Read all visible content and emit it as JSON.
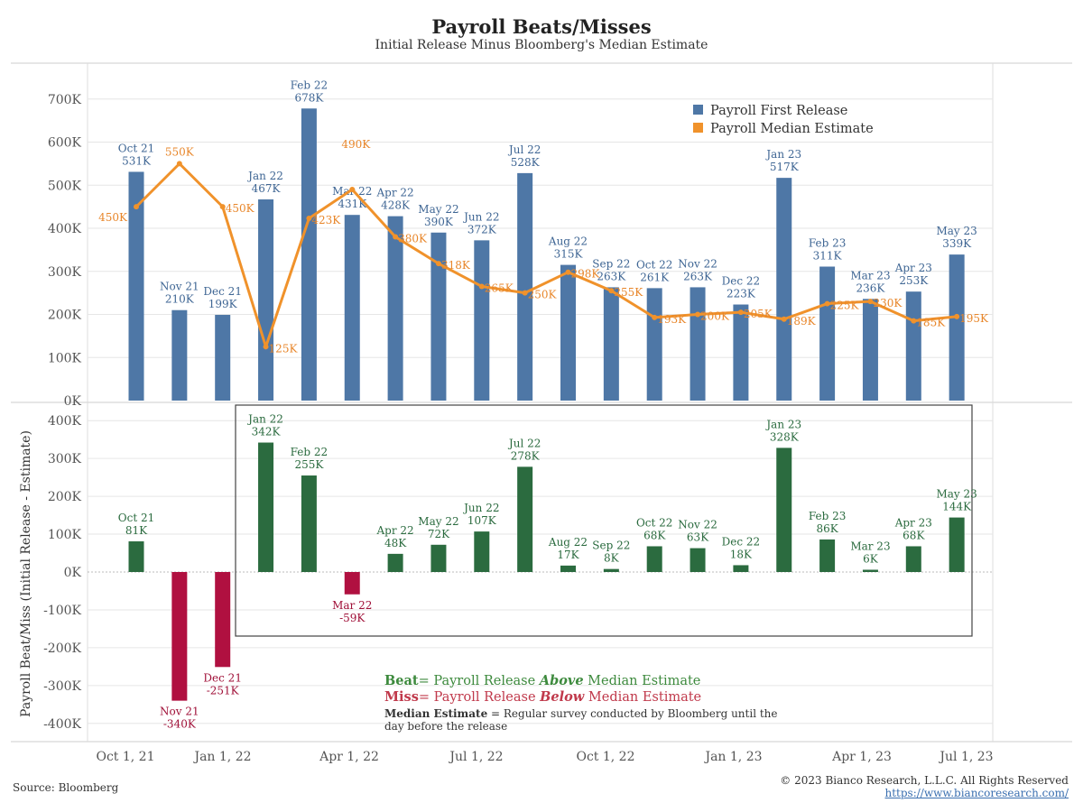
{
  "title": "Payroll Beats/Misses",
  "subtitle": "Initial Release Minus Bloomberg's Median Estimate",
  "colors": {
    "release": "#4e77a6",
    "estimate": "#f0922b",
    "beat": "#2b6b3f",
    "miss": "#b01040",
    "beat_text": "#3d8a3d",
    "miss_text": "#c0394b",
    "axis_text": "#555555",
    "grid": "#e6e6e6"
  },
  "chart_data": [
    {
      "type": "bar+line",
      "y_ticks": [
        "0K",
        "100K",
        "200K",
        "300K",
        "400K",
        "500K",
        "600K",
        "700K"
      ],
      "ylim": [
        0,
        730
      ],
      "legend": {
        "position": "top-right",
        "items": [
          "Payroll First Release",
          "Payroll Median Estimate"
        ]
      },
      "months": [
        "Oct 21",
        "Nov 21",
        "Dec 21",
        "Jan 22",
        "Feb 22",
        "Mar 22",
        "Apr 22",
        "May 22",
        "Jun 22",
        "Jul 22",
        "Aug 22",
        "Sep 22",
        "Oct 22",
        "Nov 22",
        "Dec 22",
        "Jan 23",
        "Feb 23",
        "Mar 23",
        "Apr 23",
        "May 23"
      ],
      "series": [
        {
          "name": "Payroll First Release",
          "values": [
            531,
            210,
            199,
            467,
            678,
            431,
            428,
            390,
            372,
            528,
            315,
            263,
            261,
            263,
            223,
            517,
            311,
            236,
            253,
            339
          ],
          "labels": [
            "531K",
            "210K",
            "199K",
            "467K",
            "678K",
            "431K",
            "428K",
            "390K",
            "372K",
            "528K",
            "315K",
            "263K",
            "261K",
            "263K",
            "223K",
            "517K",
            "311K",
            "236K",
            "253K",
            "339K"
          ]
        },
        {
          "name": "Payroll Median Estimate",
          "values": [
            450,
            550,
            450,
            125,
            423,
            490,
            380,
            318,
            265,
            250,
            298,
            255,
            193,
            200,
            205,
            189,
            225,
            230,
            185,
            195
          ],
          "labels": [
            "450K",
            "550K",
            "450K",
            "125K",
            "423K",
            "490K",
            "380K",
            "318K",
            "265K",
            "250K",
            "298K",
            "255K",
            "193K",
            "200K",
            "205K",
            "189K",
            "225K",
            "230K",
            "185K",
            "195K"
          ]
        }
      ]
    },
    {
      "type": "bar",
      "ylabel": "Payroll Beat/Miss (Initial Release - Estimate)",
      "y_ticks": [
        "400K",
        "300K",
        "200K",
        "100K",
        "0K",
        "-100K",
        "-200K",
        "-300K",
        "-400K"
      ],
      "ylim": [
        -410,
        430
      ],
      "months": [
        "Oct 21",
        "Nov 21",
        "Dec 21",
        "Jan 22",
        "Feb 22",
        "Mar 22",
        "Apr 22",
        "May 22",
        "Jun 22",
        "Jul 22",
        "Aug 22",
        "Sep 22",
        "Oct 22",
        "Nov 22",
        "Dec 22",
        "Jan 23",
        "Feb 23",
        "Mar 23",
        "Apr 23",
        "May 23"
      ],
      "values": [
        81,
        -340,
        -251,
        342,
        255,
        -59,
        48,
        72,
        107,
        278,
        17,
        8,
        68,
        63,
        18,
        328,
        86,
        6,
        68,
        144
      ],
      "labels": [
        "81K",
        "-340K",
        "-251K",
        "342K",
        "255K",
        "-59K",
        "48K",
        "72K",
        "107K",
        "278K",
        "17K",
        "8K",
        "68K",
        "63K",
        "18K",
        "328K",
        "86K",
        "6K",
        "68K",
        "144K"
      ]
    }
  ],
  "x_axis_ticks": [
    "Oct 1, 21",
    "Jan 1, 22",
    "Apr 1, 22",
    "Jul 1, 22",
    "Oct 1, 22",
    "Jan 1, 23",
    "Apr 1, 23",
    "Jul 1, 23"
  ],
  "notes": {
    "beat_word": "Beat",
    "beat_prefix": "= Payroll Release ",
    "beat_em": "Above",
    "beat_suffix": " Median Estimate",
    "miss_word": "Miss",
    "miss_prefix": "= Payroll Release ",
    "miss_em": "Below",
    "miss_suffix": " Median Estimate",
    "median_word": "Median Estimate",
    "median_text": " = Regular survey conducted by Bloomberg until the day before the release"
  },
  "footer": {
    "source": "Source: Bloomberg",
    "copyright": "© 2023 Bianco Research, L.L.C. All Rights Reserved",
    "url": "https://www.biancoresearch.com/"
  }
}
